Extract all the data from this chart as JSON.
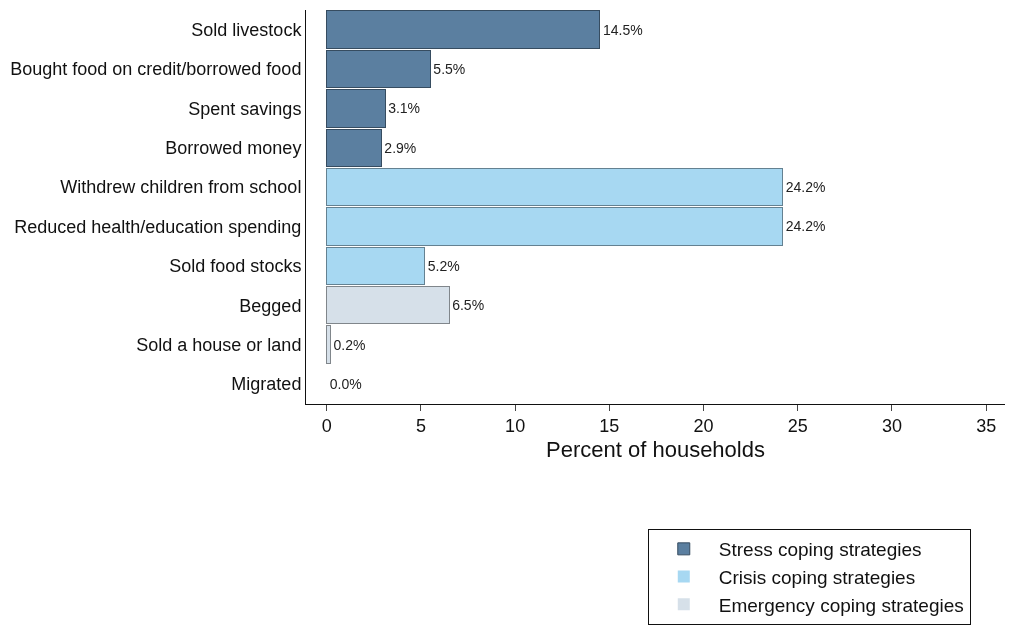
{
  "chart_data": {
    "type": "bar",
    "orientation": "horizontal",
    "stacked": true,
    "xlabel": "Percent of households",
    "categories": [
      "Sold livestock",
      "Bought food on credit/borrowed food",
      "Spent savings",
      "Borrowed money",
      "Withdrew children from school",
      "Reduced health/education spending",
      "Sold food stocks",
      "Begged",
      "Sold a house or land",
      "Migrated"
    ],
    "series": [
      {
        "name": "Stress coping strategies",
        "color": "#5b7fa0",
        "values": [
          14.5,
          5.5,
          3.1,
          2.9,
          null,
          null,
          null,
          null,
          null,
          null
        ],
        "value_labels": [
          "14.5%",
          "5.5%",
          "3.1%",
          "2.9%",
          null,
          null,
          null,
          null,
          null,
          null
        ]
      },
      {
        "name": "Crisis coping strategies",
        "color": "#a7d8f2",
        "values": [
          null,
          null,
          null,
          null,
          24.2,
          24.2,
          5.2,
          null,
          null,
          null
        ],
        "value_labels": [
          null,
          null,
          null,
          null,
          "24.2%",
          "24.2%",
          "5.2%",
          null,
          null,
          null
        ]
      },
      {
        "name": "Emergency coping strategies",
        "color": "#d6e0e9",
        "values": [
          null,
          null,
          null,
          null,
          null,
          null,
          null,
          6.5,
          0.2,
          0.0
        ],
        "value_labels": [
          null,
          null,
          null,
          null,
          null,
          null,
          null,
          "6.5%",
          "0.2%",
          "0.0%"
        ]
      }
    ],
    "xlim": [
      -1.1,
      36
    ],
    "xticks": [
      0,
      5,
      10,
      15,
      20,
      25,
      30,
      35
    ],
    "legend": "bottom"
  }
}
